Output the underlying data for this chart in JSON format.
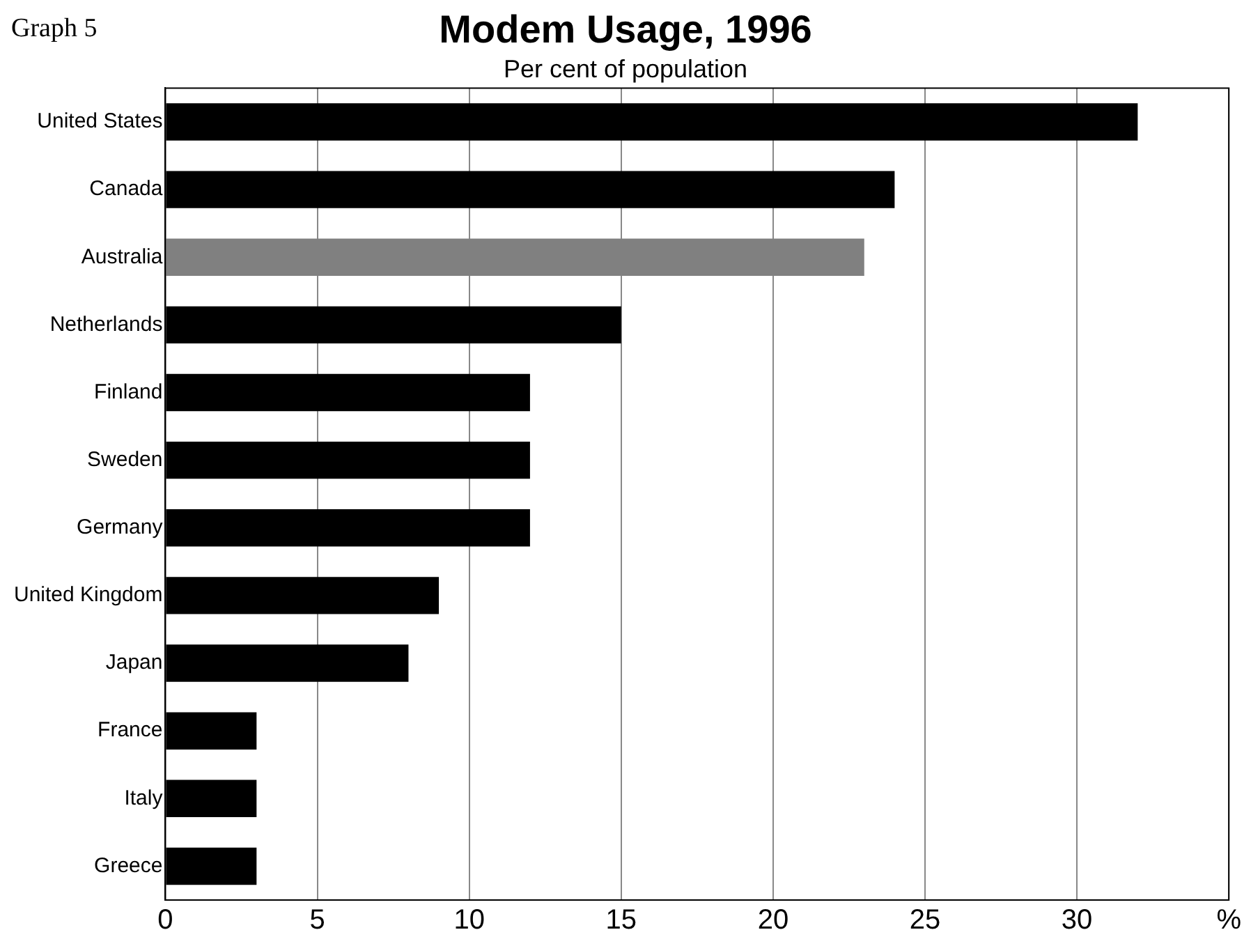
{
  "chart_data": {
    "type": "bar",
    "orientation": "horizontal",
    "title": "Modem Usage, 1996",
    "subtitle": "Per cent of population",
    "annotations": [
      "Graph 5"
    ],
    "categories": [
      "United States",
      "Canada",
      "Australia",
      "Netherlands",
      "Finland",
      "Sweden",
      "Germany",
      "United Kingdom",
      "Japan",
      "France",
      "Italy",
      "Greece"
    ],
    "values": [
      32,
      24,
      23,
      15,
      12,
      12,
      12,
      9,
      8,
      3,
      3,
      3
    ],
    "colors": [
      "#000000",
      "#000000",
      "#808080",
      "#000000",
      "#000000",
      "#000000",
      "#000000",
      "#000000",
      "#000000",
      "#000000",
      "#000000",
      "#000000"
    ],
    "xlim": [
      0,
      35
    ],
    "xticks": [
      0,
      5,
      10,
      15,
      20,
      25,
      30,
      {
        "value": 35,
        "label": "%"
      }
    ],
    "grid": "x",
    "legend": false
  }
}
